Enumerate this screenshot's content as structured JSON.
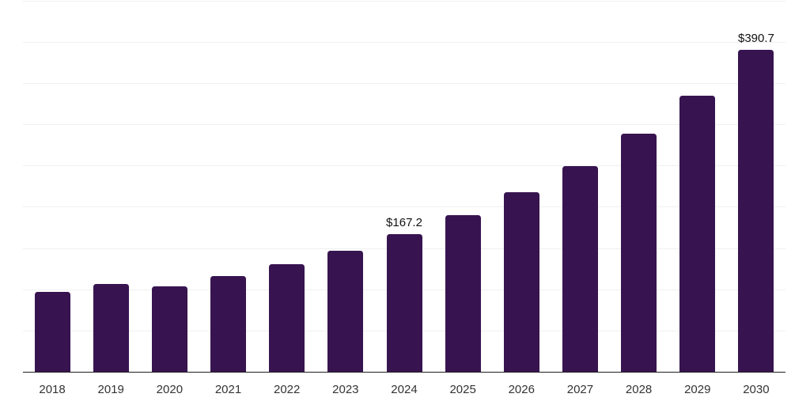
{
  "chart_data": {
    "type": "bar",
    "title": "",
    "xlabel": "",
    "ylabel": "",
    "categories": [
      "2018",
      "2019",
      "2020",
      "2021",
      "2022",
      "2023",
      "2024",
      "2025",
      "2026",
      "2027",
      "2028",
      "2029",
      "2030"
    ],
    "values": [
      96.9,
      106.3,
      103.7,
      115.6,
      130.0,
      146.5,
      167.2,
      190.0,
      217.6,
      249.7,
      288.3,
      334.3,
      390.7
    ],
    "data_labels": [
      "",
      "",
      "",
      "",
      "",
      "",
      "$167.2",
      "",
      "",
      "",
      "",
      "",
      "$390.7"
    ],
    "ylim": [
      0,
      450
    ],
    "gridline_step": 50,
    "grid": true,
    "legend": false,
    "y_tick_labels_visible": false
  },
  "colors": {
    "bar": "#371450",
    "gridline": "#f0f0f0",
    "axis_line": "#1f1f1f",
    "tick_label": "#333333",
    "data_label": "#111111",
    "background": "#ffffff"
  }
}
